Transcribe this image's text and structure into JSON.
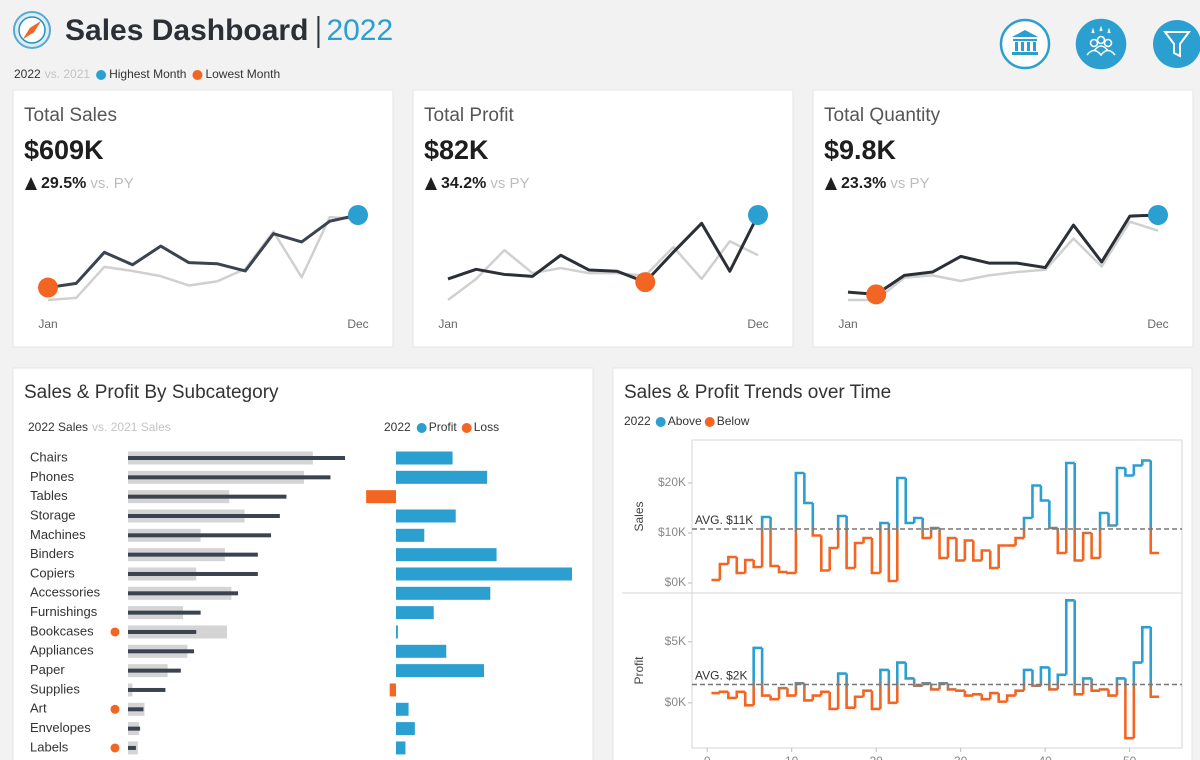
{
  "header": {
    "title": "Sales Dashboard",
    "year": "2022",
    "accent": "#2a9fd0",
    "legend": {
      "current": "2022",
      "previous": "vs. 2021",
      "highest": {
        "label": "Highest Month",
        "color": "#2a9fd0"
      },
      "lowest": {
        "label": "Lowest Month",
        "color": "#f26522"
      }
    }
  },
  "chart_data": [
    {
      "type": "sparkline",
      "title": "Total Sales",
      "kpi": "$609K",
      "change": "29.5%",
      "change_note": "vs. PY",
      "categories": [
        "Jan",
        null,
        null,
        null,
        null,
        null,
        null,
        null,
        null,
        null,
        null,
        "Dec"
      ],
      "series": [
        {
          "color": "#3b4350",
          "values": [
            18,
            22,
            52,
            40,
            58,
            42,
            41,
            34,
            70,
            62,
            82,
            88
          ]
        },
        {
          "color": "#d0d0d0",
          "values": [
            6,
            8,
            38,
            34,
            29,
            20,
            24,
            36,
            72,
            28,
            86,
            84
          ]
        }
      ]
    },
    {
      "type": "sparkline",
      "title": "Total Profit",
      "kpi": "$82K",
      "change": "34.2%",
      "change_note": "vs PY",
      "categories": [
        "Jan",
        null,
        null,
        null,
        null,
        null,
        null,
        null,
        null,
        null,
        null,
        "Dec"
      ],
      "series": [
        {
          "color": "#2b2f36",
          "values": [
            3.3,
            4.8,
            4.0,
            3.7,
            7.0,
            4.7,
            4.5,
            2.8,
            7.5,
            12.0,
            4.5,
            13.3
          ]
        },
        {
          "color": "#d0d0d0",
          "values": [
            0,
            3.3,
            7.8,
            4.2,
            5.0,
            4.2,
            4.2,
            3.8,
            8.3,
            3.3,
            9.2,
            7.0
          ]
        }
      ]
    },
    {
      "type": "sparkline",
      "title": "Total Quantity",
      "kpi": "$9.8K",
      "change": "23.3%",
      "change_note": "vs PY",
      "categories": [
        "Jan",
        null,
        null,
        null,
        null,
        null,
        null,
        null,
        null,
        null,
        null,
        "Dec"
      ],
      "series": [
        {
          "color": "#2b2f36",
          "values": [
            12,
            10,
            27,
            30,
            44,
            38,
            38,
            34,
            72,
            39,
            80,
            81
          ]
        },
        {
          "color": "#d0d0d0",
          "values": [
            5,
            5,
            25,
            27,
            22,
            27,
            30,
            32,
            60,
            35,
            75,
            67
          ]
        }
      ]
    },
    {
      "type": "bar",
      "title": "Sales & Profit By Subcategory",
      "categories": [
        "Chairs",
        "Phones",
        "Tables",
        "Storage",
        "Machines",
        "Binders",
        "Copiers",
        "Accessories",
        "Furnishings",
        "Bookcases",
        "Appliances",
        "Paper",
        "Supplies",
        "Art",
        "Envelopes",
        "Labels"
      ],
      "series": [
        {
          "name": "2022 Sales",
          "color": "#3b4350",
          "values": [
            98.6,
            92,
            72,
            69,
            65,
            59,
            59,
            50,
            33,
            31,
            30,
            24,
            17,
            7,
            5.5,
            3.6
          ]
        },
        {
          "name": "vs. 2021 Sales",
          "color": "#d4d4d4",
          "values": [
            84,
            80,
            46,
            53,
            33,
            44,
            31,
            47,
            25,
            45,
            27,
            18,
            2,
            7.5,
            5,
            4.5
          ]
        }
      ],
      "decline_color": "#f26522",
      "profit": {
        "title": "2022",
        "values": [
          18,
          29,
          -9.5,
          19,
          9,
          32,
          56,
          30,
          12,
          0.6,
          16,
          28,
          -2,
          4,
          6,
          3
        ],
        "legend": [
          {
            "name": "Profit",
            "color": "#2a9fd0"
          },
          {
            "name": "Loss",
            "color": "#f26522"
          }
        ]
      }
    },
    {
      "type": "step",
      "title": "Sales & Profit Trends over Time",
      "legend_title": "2022",
      "legend": [
        {
          "name": "Above",
          "color": "#2a9fd0"
        },
        {
          "name": "Below",
          "color": "#f26522"
        }
      ],
      "x": [
        1,
        2,
        3,
        4,
        5,
        6,
        7,
        8,
        9,
        10,
        11,
        12,
        13,
        14,
        15,
        16,
        17,
        18,
        19,
        20,
        21,
        22,
        23,
        24,
        25,
        26,
        27,
        28,
        29,
        30,
        31,
        32,
        33,
        34,
        35,
        36,
        37,
        38,
        39,
        40,
        41,
        42,
        43,
        44,
        45,
        46,
        47,
        48,
        49,
        50,
        51,
        52,
        53
      ],
      "xlim": [
        -1.8,
        56.2
      ],
      "xticks": [
        0,
        10,
        20,
        30,
        40,
        50
      ],
      "panels": [
        {
          "ylabel": "Sales",
          "ylim": [
            -2000,
            28600
          ],
          "yticks": [
            {
              "value": 0,
              "label": "$0K"
            },
            {
              "value": 10000,
              "label": "$10K"
            },
            {
              "value": 20000,
              "label": "$20K"
            }
          ],
          "average": {
            "value": 10800,
            "label": "AVG. $11K"
          },
          "values": [
            600,
            3800,
            5200,
            2000,
            4600,
            3200,
            13200,
            3400,
            2200,
            2000,
            22000,
            16000,
            9500,
            2500,
            7000,
            13400,
            3000,
            8000,
            9000,
            2000,
            12000,
            400,
            21000,
            12000,
            13000,
            9000,
            11000,
            5000,
            9000,
            4500,
            8500,
            4500,
            6500,
            3000,
            7500,
            7500,
            9000,
            13000,
            19500,
            16500,
            11000,
            6000,
            24000,
            4500,
            10000,
            5000,
            14000,
            11500,
            23000,
            21500,
            23500,
            24500,
            6000
          ]
        },
        {
          "ylabel": "Profit",
          "ylim": [
            -3700,
            9000
          ],
          "yticks": [
            {
              "value": 0,
              "label": "$0K"
            },
            {
              "value": 5000,
              "label": "$5K"
            }
          ],
          "average": {
            "value": 1500,
            "label": "AVG. $2K"
          },
          "values": [
            800,
            900,
            400,
            900,
            -200,
            4500,
            600,
            300,
            1200,
            600,
            1600,
            200,
            600,
            900,
            -500,
            2400,
            -400,
            500,
            1000,
            -500,
            2700,
            0,
            3300,
            2000,
            1400,
            1600,
            1100,
            1600,
            1100,
            1000,
            600,
            700,
            300,
            800,
            100,
            600,
            1000,
            2700,
            1400,
            2900,
            1100,
            2300,
            8400,
            700,
            2000,
            1000,
            1100,
            600,
            2000,
            -2900,
            3300,
            6200,
            500
          ]
        }
      ]
    }
  ]
}
